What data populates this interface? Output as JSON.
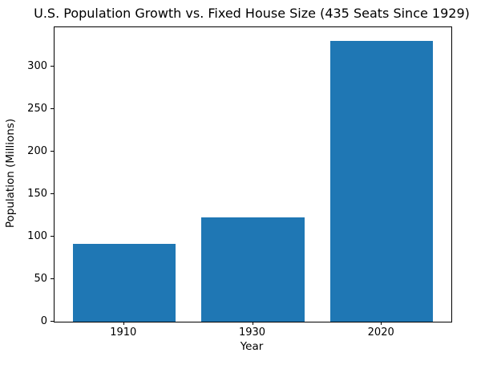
{
  "chart_data": {
    "type": "bar",
    "title": "U.S. Population Growth vs. Fixed House Size (435 Seats Since 1929)",
    "categories": [
      "1910",
      "1930",
      "2020"
    ],
    "values": [
      92,
      123,
      330
    ],
    "xlabel": "Year",
    "ylabel": "Population (Millions)",
    "ylim": [
      0,
      346.5
    ],
    "yticks": [
      0,
      50,
      100,
      150,
      200,
      250,
      300
    ],
    "bar_color": "#1f77b4",
    "bar_width_fraction": 0.8,
    "grid": false,
    "legend": null,
    "background_color": "#ffffff",
    "text_color": "#000000",
    "spine_color": "#000000"
  }
}
